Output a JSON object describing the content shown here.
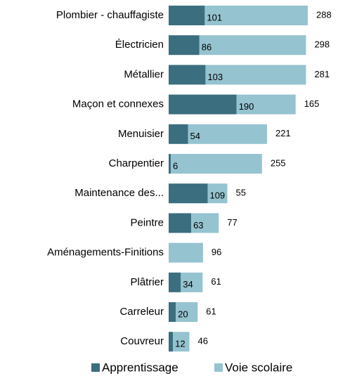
{
  "chart_data": {
    "type": "bar",
    "orientation": "horizontal",
    "stacked": true,
    "categories": [
      "Plombier - chauffagiste",
      "Électricien",
      "Métallier",
      "Maçon et connexes",
      "Menuisier",
      "Charpentier",
      "Maintenance des...",
      "Peintre",
      "Aménagements-Finitions",
      "Plâtrier",
      "Carreleur",
      "Couvreur"
    ],
    "series": [
      {
        "name": "Apprentissage",
        "color": "#3b6e7e",
        "values": [
          101,
          86,
          103,
          190,
          54,
          6,
          109,
          63,
          null,
          34,
          20,
          12
        ]
      },
      {
        "name": "Voie scolaire",
        "color": "#95c3d0",
        "values": [
          288,
          298,
          281,
          165,
          221,
          255,
          55,
          77,
          96,
          61,
          61,
          46
        ]
      }
    ],
    "legend": "bottom"
  }
}
